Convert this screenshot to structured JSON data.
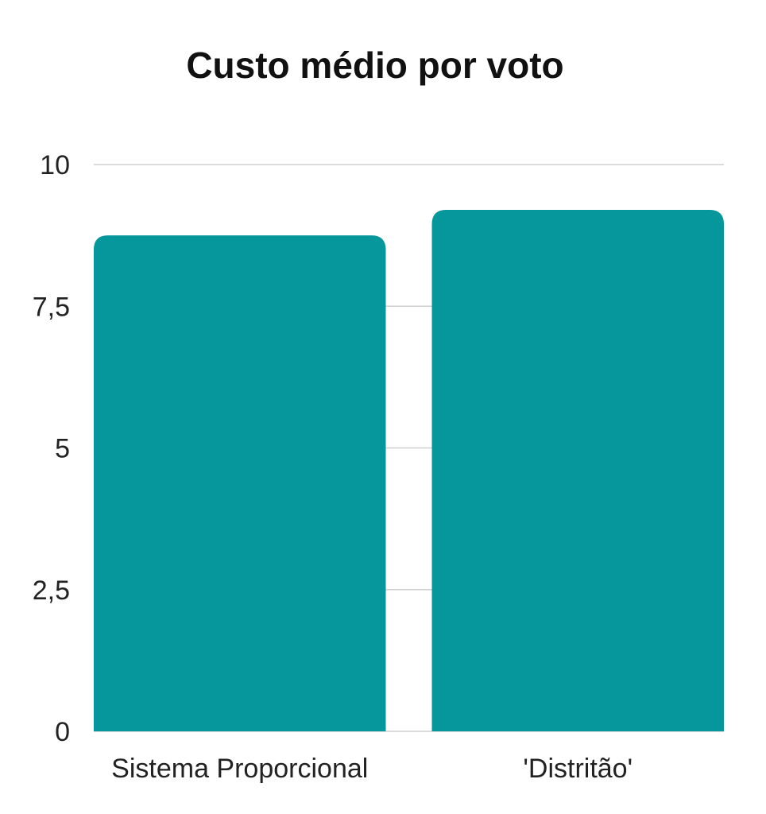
{
  "chart_data": {
    "type": "bar",
    "title": "Custo médio por voto",
    "xlabel": "",
    "ylabel": "",
    "categories": [
      "Sistema Proporcional",
      "'Distritão'"
    ],
    "values": [
      8.75,
      9.2
    ],
    "ylim": [
      0,
      10
    ],
    "yticks": [
      0,
      2.5,
      5,
      7.5,
      10
    ],
    "ytick_labels": [
      "0",
      "2,5",
      "5",
      "7,5",
      "10"
    ],
    "grid": true,
    "legend": "none",
    "bar_color": "#05979C"
  }
}
